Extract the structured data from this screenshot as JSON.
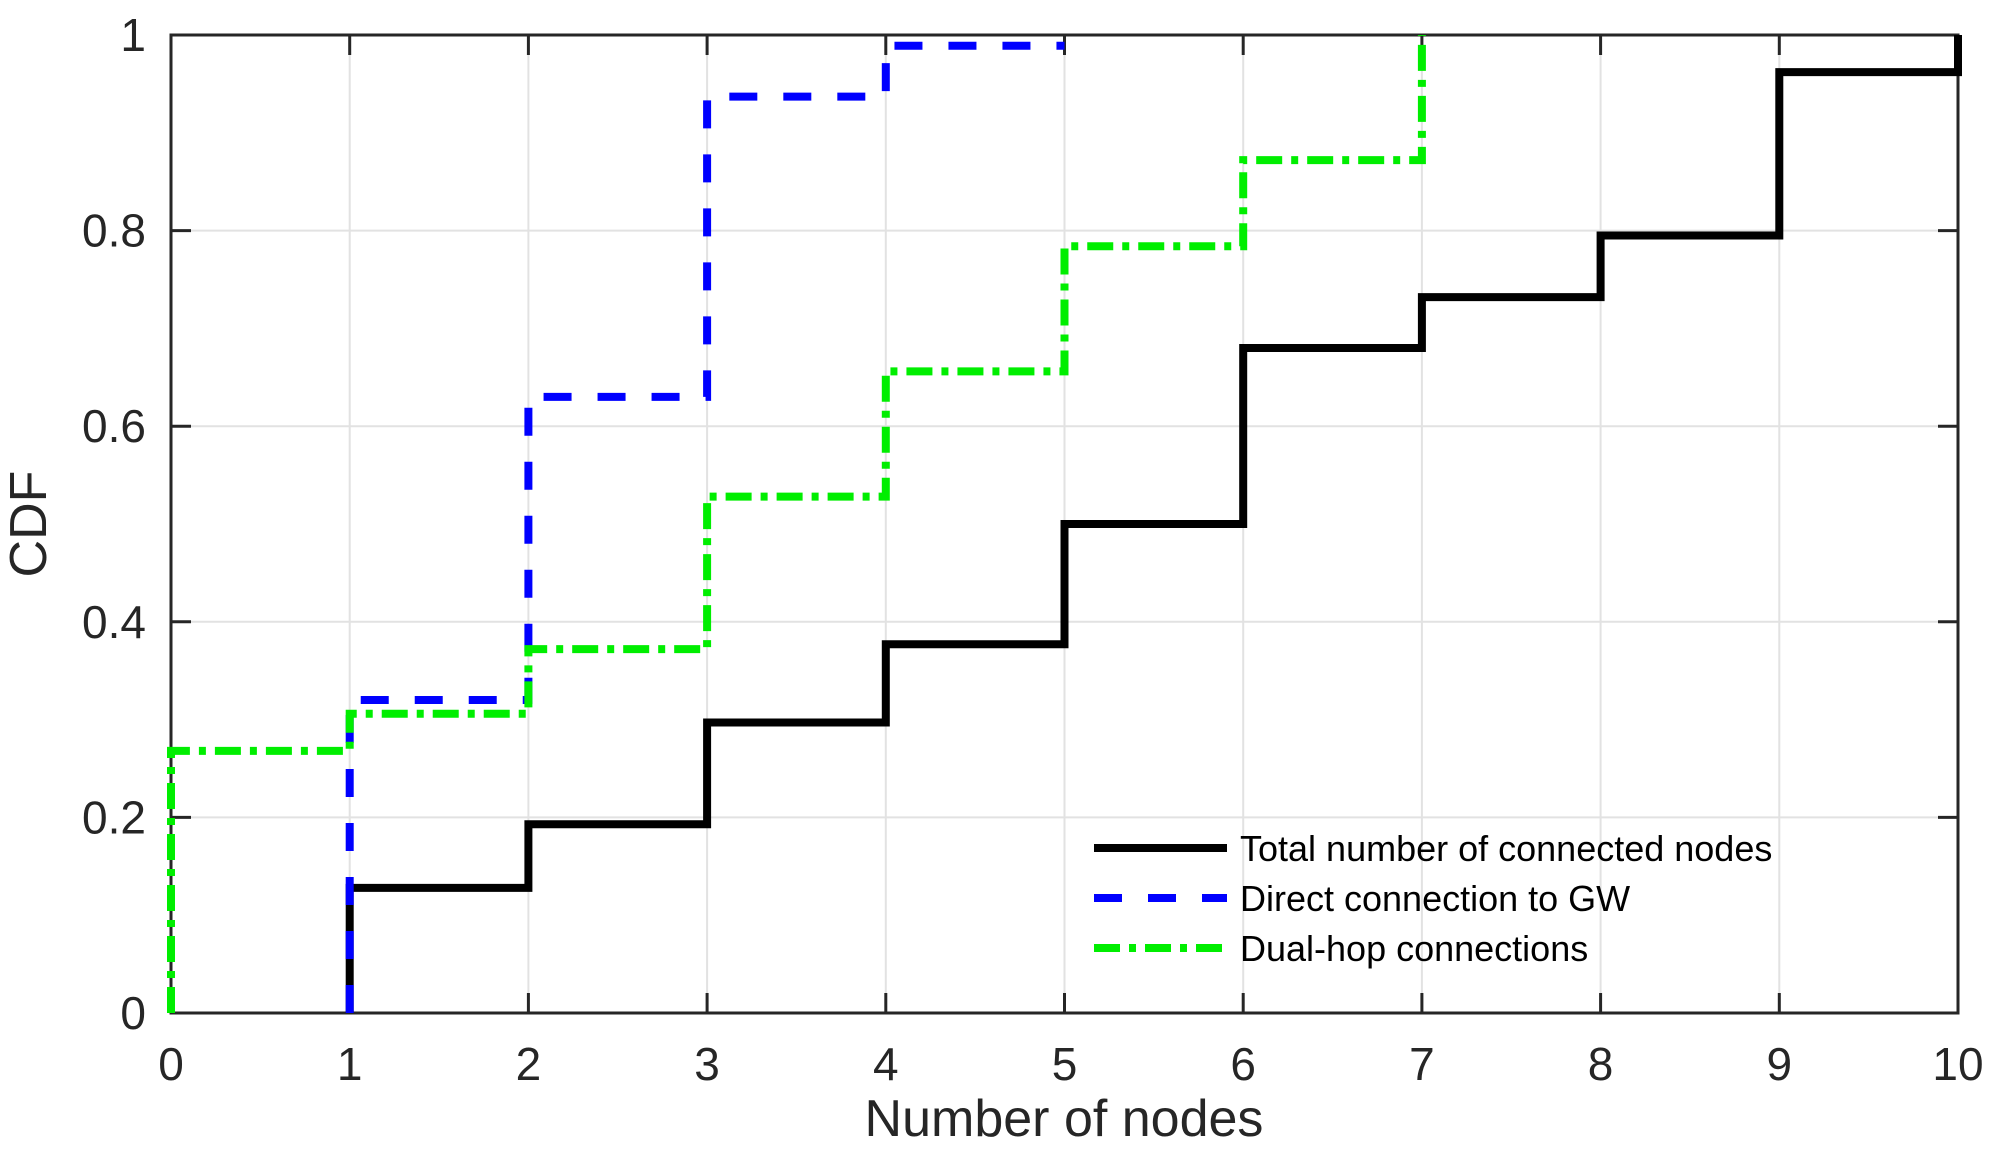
{
  "chart_data": {
    "type": "line",
    "subtype": "empirical-cdf-staircase",
    "title": "",
    "xlabel": "Number of nodes",
    "ylabel": "CDF",
    "xlim": [
      0,
      10
    ],
    "ylim": [
      0,
      1
    ],
    "grid": true,
    "grid_color": "#e2e2e2",
    "axis_color": "#262626",
    "background_color": "#ffffff",
    "legend": {
      "position": "inside-lower-right",
      "box": false
    },
    "xticks": {
      "values": [
        0,
        1,
        2,
        3,
        4,
        5,
        6,
        7,
        8,
        9,
        10
      ],
      "labels": [
        "0",
        "1",
        "2",
        "3",
        "4",
        "5",
        "6",
        "7",
        "8",
        "9",
        "10"
      ]
    },
    "yticks": {
      "values": [
        0,
        0.2,
        0.4,
        0.6,
        0.8,
        1
      ],
      "labels": [
        "0",
        "0.2",
        "0.4",
        "0.6",
        "0.8",
        "1"
      ]
    },
    "series": [
      {
        "name": "Total number of connected nodes",
        "color": "#000000",
        "line_style": "solid",
        "step_x": [
          1,
          2,
          3,
          4,
          5,
          6,
          7,
          8,
          9,
          10
        ],
        "cdf": [
          0.128,
          0.193,
          0.297,
          0.377,
          0.5,
          0.68,
          0.732,
          0.795,
          0.962,
          1.0
        ]
      },
      {
        "name": "Direct connection to GW",
        "color": "#0000ff",
        "line_style": "dashed",
        "step_x": [
          1,
          2,
          3,
          4,
          5
        ],
        "cdf": [
          0.32,
          0.63,
          0.937,
          0.989,
          0.989
        ]
      },
      {
        "name": "Dual-hop connections",
        "color": "#00ee00",
        "line_style": "dash-dot",
        "step_x": [
          0,
          1,
          2,
          3,
          4,
          5,
          6,
          7
        ],
        "cdf": [
          0.268,
          0.306,
          0.372,
          0.528,
          0.656,
          0.784,
          0.872,
          1.0
        ]
      }
    ]
  }
}
